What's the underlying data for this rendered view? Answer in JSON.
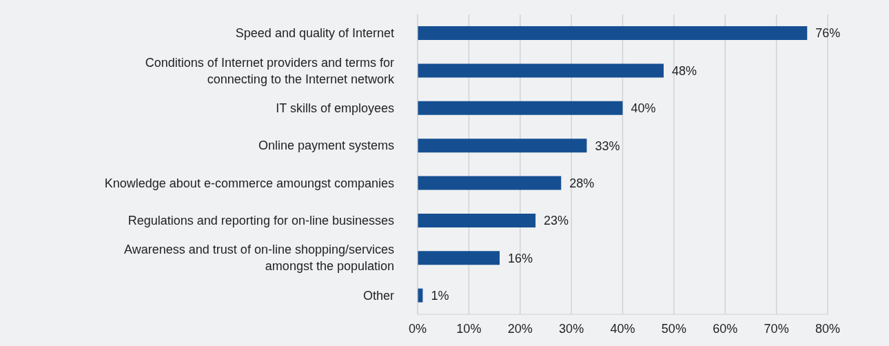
{
  "chart_data": {
    "type": "bar",
    "orientation": "horizontal",
    "categories": [
      "Speed and quality of Internet",
      "Conditions of Internet providers and terms for connecting to the Internet network",
      "IT skills of employees",
      "Online payment systems",
      "Knowledge about e-commerce amoungst companies",
      "Regulations and reporting for on-line businesses",
      "Awareness and trust of on-line shopping/services amongst the population",
      "Other"
    ],
    "values": [
      76,
      48,
      40,
      33,
      28,
      23,
      16,
      1
    ],
    "value_labels": [
      "76%",
      "48%",
      "40%",
      "33%",
      "28%",
      "23%",
      "16%",
      "1%"
    ],
    "color": "#154f91",
    "xlim": [
      0,
      80
    ],
    "xticks": [
      {
        "value": 0,
        "label": "0%"
      },
      {
        "value": 10,
        "label": "10%"
      },
      {
        "value": 20,
        "label": "20%"
      },
      {
        "value": 30,
        "label": "30%"
      },
      {
        "value": 40,
        "label": "40%"
      },
      {
        "value": 50,
        "label": "50%"
      },
      {
        "value": 60,
        "label": "60%"
      },
      {
        "value": 70,
        "label": "70%"
      },
      {
        "value": 80,
        "label": "80%"
      }
    ],
    "grid": "x"
  }
}
